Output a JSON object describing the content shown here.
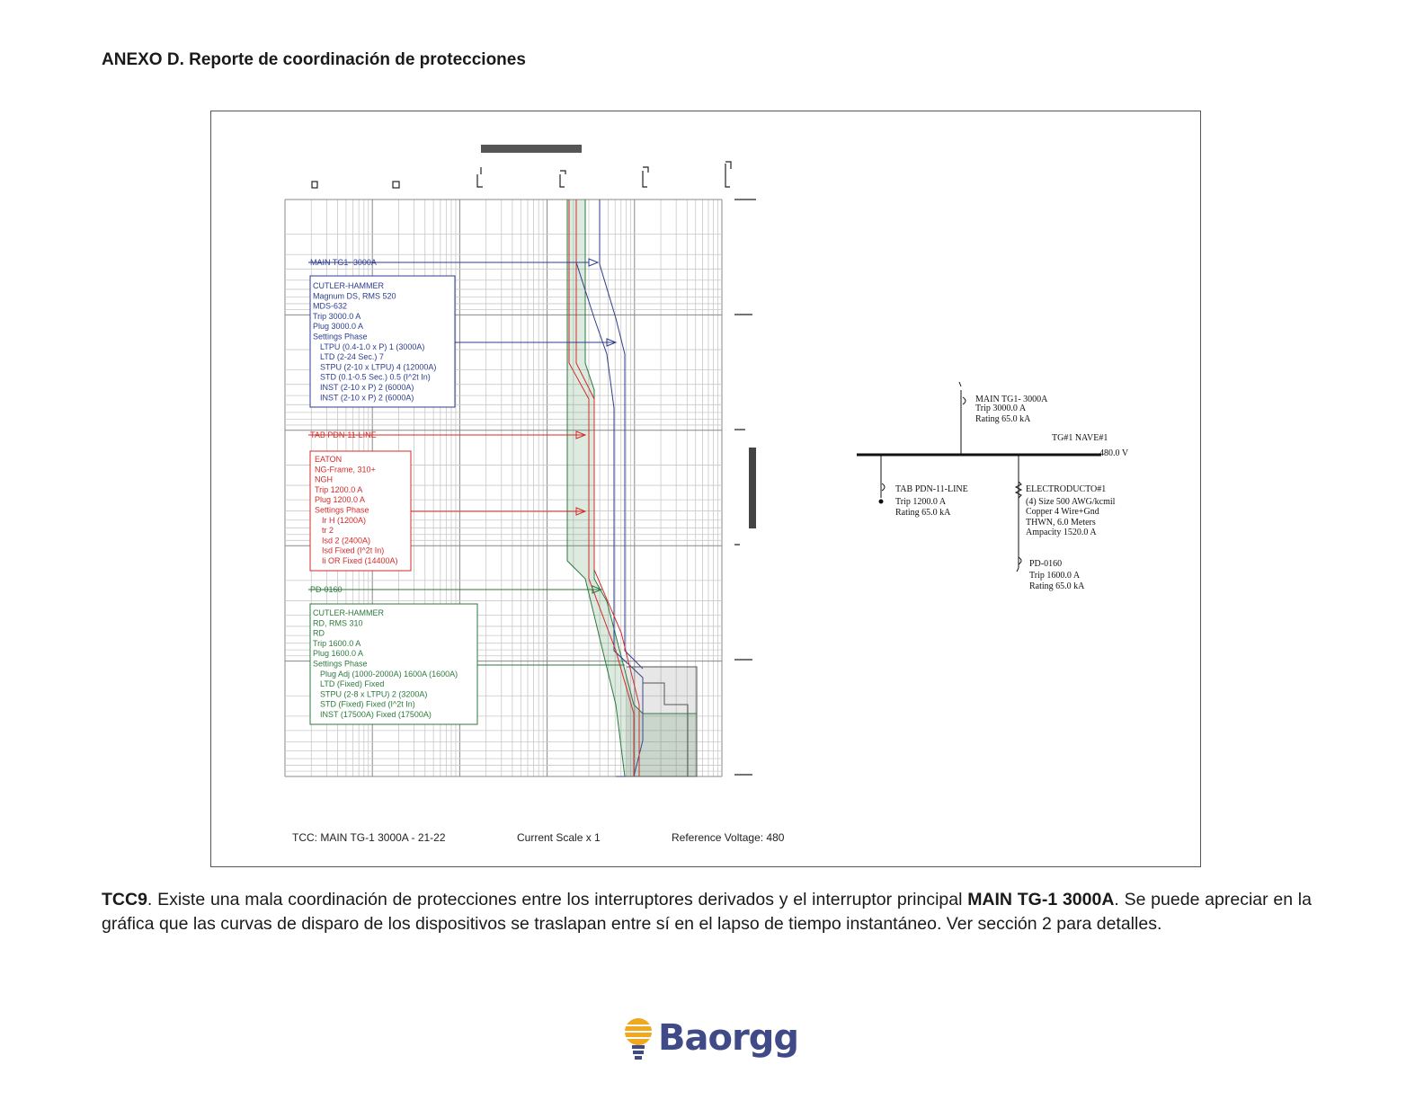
{
  "heading": "ANEXO D. Reporte de coordinación de protecciones",
  "tcc": {
    "main_label": "MAIN TG1- 3000A",
    "main_box": [
      "CUTLER-HAMMER",
      "Magnum DS, RMS 520",
      "MDS-632",
      "Trip 3000.0 A",
      "Plug 3000.0 A",
      "Settings Phase",
      "  LTPU (0.4-1.0 x P) 1 (3000A)",
      "  LTD (2-24 Sec.) 7",
      "  STPU (2-10 x LTPU) 4 (12000A)",
      "  STD (0.1-0.5 Sec.) 0.5 (I^2t In)",
      "  INST (2-10 x P) 2 (6000A)",
      "  INST (2-10 x P) 2 (6000A)"
    ],
    "tab_label": "TAB PDN-11-LINE",
    "tab_box": [
      "EATON",
      "NG-Frame, 310+",
      "NGH",
      "Trip 1200.0 A",
      "Plug 1200.0 A",
      "Settings Phase",
      "  Ir H (1200A)",
      "  tr 2",
      "  Isd 2 (2400A)",
      "  Isd Fixed (I^2t In)",
      "  Ii OR Fixed (14400A)"
    ],
    "pd_label": "PD-0160",
    "pd_box": [
      "CUTLER-HAMMER",
      "RD, RMS 310",
      "RD",
      "Trip 1600.0 A",
      "Plug 1600.0 A",
      "Settings Phase",
      "  Plug Adj (1000-2000A) 1600A (1600A)",
      "  LTD (Fixed) Fixed",
      "  STPU (2-8 x LTPU) 2 (3200A)",
      "  STD (Fixed) Fixed (I^2t In)",
      "  INST (17500A) Fixed (17500A)"
    ],
    "footer_tcc": "TCC:  MAIN TG-1 3000A - 21-22",
    "footer_scale": "Current Scale  x 1",
    "footer_voltage": "Reference Voltage: 480"
  },
  "oneline": {
    "main_name": "MAIN TG1- 3000A",
    "main_trip": "Trip 3000.0 A",
    "main_rating": "Rating 65.0 kA",
    "bus_name": "TG#1 NAVE#1",
    "bus_voltage": "480.0 V",
    "tab_name": "TAB PDN-11-LINE",
    "tab_trip": "Trip 1200.0 A",
    "tab_rating": "Rating 65.0 kA",
    "duct_name": "ELECTRODUCTO#1",
    "duct_size": "(4) Size 500 AWG/kcmil",
    "duct_mat": "Copper 4 Wire+Gnd",
    "duct_ins": "THWN, 6.0 Meters",
    "duct_amp": "Ampacity 1520.0 A",
    "pd_name": "PD-0160",
    "pd_trip": "Trip 1600.0 A",
    "pd_rating": "Rating 65.0 kA"
  },
  "caption": {
    "lead": "TCC9",
    "part1": ". Existe una mala coordinación de protecciones entre los interruptores derivados y el interruptor principal ",
    "bold": "MAIN TG-1 3000A",
    "part2": ". Se puede apreciar en la gráfica que las curvas de disparo de los dispositivos se traslapan entre sí en el lapso de tiempo instantáneo. Ver sección 2 para detalles."
  },
  "logo": {
    "text": "Baorgg"
  },
  "colors": {
    "blue": "#2c3d8f",
    "red": "#d42a2a",
    "green": "#2c7a3e"
  }
}
